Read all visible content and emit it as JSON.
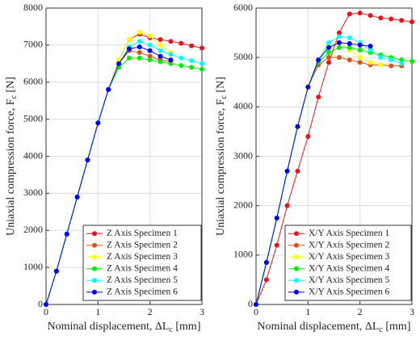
{
  "chart_data": [
    {
      "type": "line",
      "x_label": "Nominal displacement, ΔL",
      "x_label_sub": "c",
      "x_label_suffix": " [mm]",
      "y_label": "Uniaxial compression force, F",
      "y_label_sub": "c",
      "y_label_suffix": " [N]",
      "xlim": [
        0,
        3
      ],
      "xticks": [
        0,
        1,
        2,
        3
      ],
      "ylim": [
        0,
        8000
      ],
      "yticks": [
        0,
        1000,
        2000,
        3000,
        4000,
        5000,
        6000,
        7000,
        8000
      ],
      "grid": true,
      "legend": "lower right",
      "x": [
        0,
        0.2,
        0.4,
        0.6,
        0.8,
        1.0,
        1.2,
        1.4,
        1.6,
        1.8,
        2.0,
        2.2,
        2.4,
        2.6,
        2.8,
        3.0
      ],
      "series": [
        {
          "name": "Z Axis Specimen 1",
          "color": "#e8141b",
          "values": [
            0,
            900,
            1900,
            2900,
            3900,
            4900,
            5800,
            6600,
            7150,
            7300,
            7200,
            7150,
            7100,
            7050,
            6980,
            6920
          ]
        },
        {
          "name": "Z Axis Specimen 2",
          "color": "#d95319",
          "values": [
            0,
            900,
            1900,
            2900,
            3900,
            4900,
            5800,
            6500,
            6850,
            6800,
            6700,
            6600,
            6550,
            null,
            null,
            null
          ]
        },
        {
          "name": "Z Axis Specimen 3",
          "color": "#ffff00",
          "values": [
            0,
            900,
            1900,
            2900,
            3900,
            4900,
            5800,
            6600,
            7150,
            7350,
            7250,
            7000,
            6800,
            null,
            null,
            null
          ]
        },
        {
          "name": "Z Axis Specimen 4",
          "color": "#00ee00",
          "values": [
            0,
            900,
            1900,
            2900,
            3900,
            4900,
            5800,
            6400,
            6650,
            6650,
            6600,
            6550,
            6500,
            6450,
            6400,
            6350
          ]
        },
        {
          "name": "Z Axis Specimen 5",
          "color": "#00ffff",
          "values": [
            0,
            900,
            1900,
            2900,
            3900,
            4900,
            5800,
            6500,
            6950,
            7100,
            7000,
            6850,
            6750,
            6650,
            6580,
            6500
          ]
        },
        {
          "name": "Z Axis Specimen 6",
          "color": "#0000ff",
          "values": [
            0,
            900,
            1900,
            2900,
            3900,
            4900,
            5800,
            6500,
            6900,
            6950,
            6850,
            6700,
            6600,
            null,
            null,
            null
          ]
        }
      ]
    },
    {
      "type": "line",
      "x_label": "Nominal displacement, ΔL",
      "x_label_sub": "c",
      "x_label_suffix": " [mm]",
      "y_label": "Uniaxial compression force, F",
      "y_label_sub": "c",
      "y_label_suffix": " [N]",
      "xlim": [
        0,
        3
      ],
      "xticks": [
        0,
        1,
        2,
        3
      ],
      "ylim": [
        0,
        6000
      ],
      "yticks": [
        0,
        1000,
        2000,
        3000,
        4000,
        5000,
        6000
      ],
      "grid": true,
      "legend": "lower right",
      "x": [
        0,
        0.2,
        0.4,
        0.6,
        0.8,
        1.0,
        1.2,
        1.4,
        1.6,
        1.8,
        2.0,
        2.2,
        2.4,
        2.6,
        2.8,
        3.0
      ],
      "series": [
        {
          "name": "X/Y Axis Specimen 1",
          "color": "#e8141b",
          "values": [
            0,
            500,
            1200,
            2000,
            2700,
            3400,
            4200,
            4900,
            5500,
            5880,
            5900,
            5850,
            5800,
            5780,
            5750,
            5720
          ]
        },
        {
          "name": "X/Y Axis Specimen 2",
          "color": "#d95319",
          "values": [
            0,
            850,
            1750,
            2700,
            3600,
            4400,
            4850,
            5000,
            5000,
            4950,
            4900,
            4850,
            4850,
            4830,
            4830,
            null
          ]
        },
        {
          "name": "X/Y Axis Specimen 3",
          "color": "#ffff00",
          "values": [
            0,
            850,
            1750,
            2700,
            3600,
            4400,
            4950,
            5250,
            5300,
            5150,
            5000,
            4900,
            4850,
            null,
            null,
            null
          ]
        },
        {
          "name": "X/Y Axis Specimen 4",
          "color": "#00ee00",
          "values": [
            0,
            850,
            1750,
            2700,
            3600,
            4400,
            4900,
            5100,
            5200,
            5200,
            5150,
            5100,
            5050,
            5000,
            4950,
            4920
          ]
        },
        {
          "name": "X/Y Axis Specimen 5",
          "color": "#00ffff",
          "values": [
            0,
            850,
            1750,
            2700,
            3600,
            4400,
            4950,
            5300,
            5420,
            5400,
            5300,
            5150,
            5000,
            4950,
            4880,
            null
          ]
        },
        {
          "name": "X/Y Axis Specimen 6",
          "color": "#0000ff",
          "values": [
            0,
            850,
            1750,
            2700,
            3600,
            4400,
            4950,
            5200,
            5300,
            5280,
            5250,
            5230,
            null,
            null,
            null,
            null
          ]
        }
      ]
    }
  ]
}
